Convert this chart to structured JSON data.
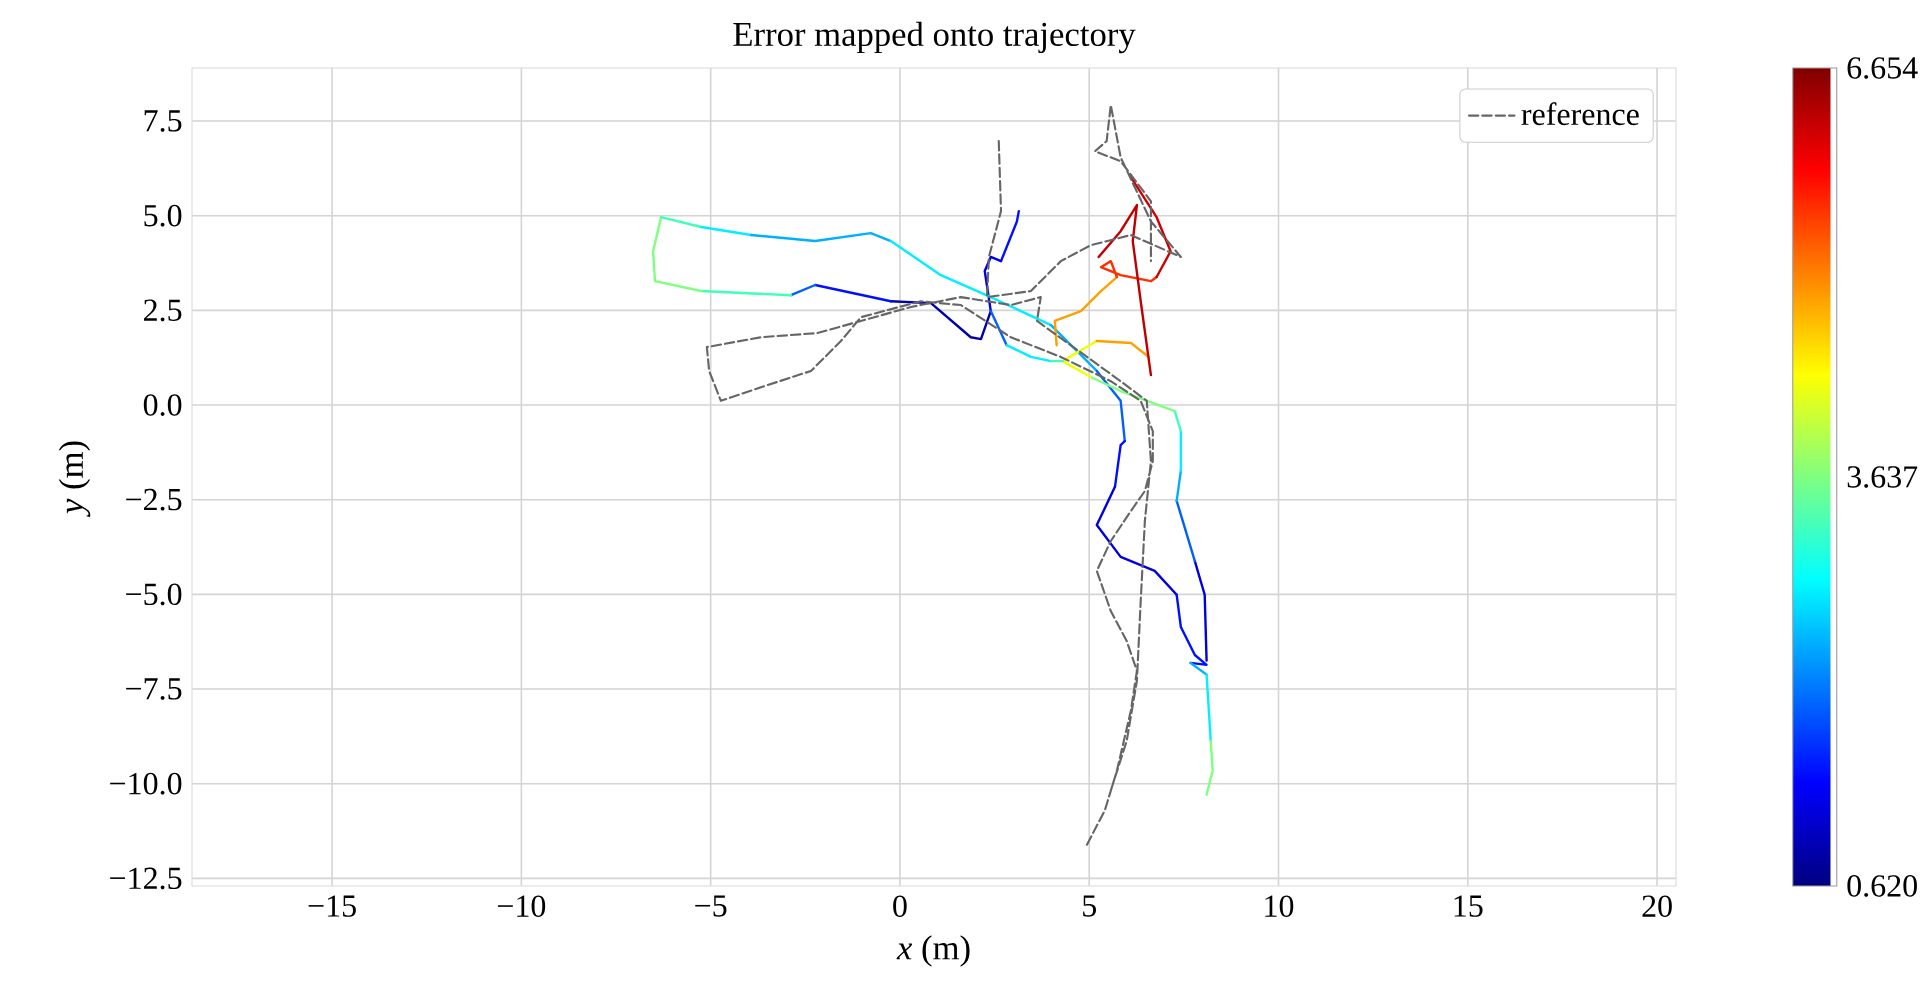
{
  "chart_data": {
    "type": "line",
    "title": "Error mapped onto trajectory",
    "xlabel": "*x* (m)",
    "ylabel": "*y* (m)",
    "xlim": [
      -18.7,
      20.5
    ],
    "ylim": [
      -12.7,
      8.9
    ],
    "xticks": [
      {
        "value": -15,
        "label": "−15"
      },
      {
        "value": -10,
        "label": "−10"
      },
      {
        "value": -5,
        "label": "−5"
      },
      0,
      5,
      10,
      15,
      20
    ],
    "yticks": [
      {
        "value": -12.5,
        "label": "−12.5"
      },
      {
        "value": -10,
        "label": "−10.0"
      },
      {
        "value": -7.5,
        "label": "−7.5"
      },
      {
        "value": -5,
        "label": "−5.0"
      },
      {
        "value": -2.5,
        "label": "−2.5"
      },
      {
        "value": 0,
        "label": "0.0"
      },
      2.5,
      {
        "value": 5,
        "label": "5.0"
      },
      7.5
    ],
    "clim": [
      0.62,
      6.654
    ],
    "cticks": [
      {
        "value": 0.62,
        "label": "0.620"
      },
      3.637,
      6.654
    ],
    "grid": true,
    "legend": "top right",
    "series": [
      {
        "color": "#0010ff",
        "x": [
          3.14,
          3.09,
          2.67
        ],
        "values": [
          5.12,
          4.85,
          3.8
        ]
      },
      {
        "color": "#0000e0",
        "x": [
          2.67,
          2.4,
          2.24,
          2.4
        ],
        "values": [
          3.8,
          3.91,
          3.54,
          2.48
        ]
      },
      {
        "color": "#0000b0",
        "x": [
          2.4,
          2.14,
          1.87,
          0.82,
          -0.24
        ],
        "values": [
          2.48,
          1.74,
          1.79,
          2.69,
          2.74
        ]
      },
      {
        "color": "#0010ff",
        "x": [
          -0.24,
          -2.24
        ],
        "values": [
          2.74,
          3.17
        ]
      },
      {
        "color": "#0060ff",
        "x": [
          -2.24,
          -2.88
        ],
        "values": [
          3.17,
          2.9
        ]
      },
      {
        "color": "#40ffb8",
        "x": [
          -2.88,
          -5.25
        ],
        "values": [
          2.9,
          3.01
        ]
      },
      {
        "color": "#80ff80",
        "x": [
          -5.25,
          -6.47,
          -6.52,
          -6.31
        ],
        "values": [
          3.01,
          3.27,
          4.06,
          4.96
        ]
      },
      {
        "color": "#40ffb8",
        "x": [
          -6.31,
          -5.25
        ],
        "values": [
          4.96,
          4.7
        ]
      },
      {
        "color": "#00f0ff",
        "x": [
          -5.25,
          -3.93
        ],
        "values": [
          4.7,
          4.49
        ]
      },
      {
        "color": "#00b0ff",
        "x": [
          -3.93,
          -2.24,
          -0.77,
          -0.24
        ],
        "values": [
          4.49,
          4.33,
          4.54,
          4.33
        ]
      },
      {
        "color": "#00f0ff",
        "x": [
          -0.24,
          1.08,
          2.4,
          3.99
        ],
        "values": [
          4.33,
          3.43,
          2.85,
          2.11
        ]
      },
      {
        "color": "#00b0ff",
        "x": [
          3.99,
          5.2
        ],
        "values": [
          2.11,
          0.9
        ]
      },
      {
        "color": "#0060ff",
        "x": [
          5.2,
          5.83,
          5.94
        ],
        "values": [
          0.9,
          0.11,
          -0.95
        ]
      },
      {
        "color": "#0010ff",
        "x": [
          5.94,
          5.83,
          5.68
        ],
        "values": [
          -0.95,
          -1.06,
          -2.16
        ]
      },
      {
        "color": "#0000e0",
        "x": [
          5.68,
          5.2,
          5.83,
          6.73,
          7.31
        ],
        "values": [
          -2.16,
          -3.17,
          -4.01,
          -4.38,
          -5.01
        ]
      },
      {
        "color": "#0010ff",
        "x": [
          7.31,
          7.42,
          7.79,
          8.1,
          7.68
        ],
        "values": [
          -5.01,
          -5.86,
          -6.6,
          -6.86,
          -6.81
        ]
      },
      {
        "color": "#00b0ff",
        "x": [
          7.68,
          8.1
        ],
        "values": [
          -6.81,
          -7.12
        ]
      },
      {
        "color": "#00f0ff",
        "x": [
          8.1,
          8.21
        ],
        "values": [
          -7.12,
          -8.87
        ]
      },
      {
        "color": "#80ff80",
        "x": [
          8.21,
          8.26,
          8.1
        ],
        "values": [
          -8.87,
          -9.66,
          -10.29
        ]
      },
      {
        "color": "#0000e0",
        "x": [
          8.1,
          8.05,
          7.79
        ],
        "values": [
          -6.75,
          -5.01,
          -4.12
        ]
      },
      {
        "color": "#0060ff",
        "x": [
          7.79,
          7.31
        ],
        "values": [
          -4.12,
          -2.53
        ]
      },
      {
        "color": "#00b0ff",
        "x": [
          7.31,
          7.42
        ],
        "values": [
          -2.53,
          -1.74
        ]
      },
      {
        "color": "#00f0ff",
        "x": [
          7.42,
          7.42
        ],
        "values": [
          -1.74,
          -0.69
        ]
      },
      {
        "color": "#40ffb8",
        "x": [
          7.42,
          7.26
        ],
        "values": [
          -0.69,
          -0.16
        ]
      },
      {
        "color": "#80ff80",
        "x": [
          7.26,
          5.83,
          5.04
        ],
        "values": [
          -0.16,
          0.37,
          0.74
        ]
      },
      {
        "color": "#f0ff00",
        "x": [
          5.04,
          4.3,
          5.2
        ],
        "values": [
          0.74,
          1.16,
          1.69
        ]
      },
      {
        "color": "#ffa000",
        "x": [
          5.2,
          6.1,
          6.57
        ],
        "values": [
          1.69,
          1.64,
          1.27
        ]
      },
      {
        "color": "#0060ff",
        "x": [
          2.4,
          2.82
        ],
        "values": [
          2.48,
          1.58
        ]
      },
      {
        "color": "#00f0ff",
        "x": [
          2.82,
          3.46,
          3.99
        ],
        "values": [
          1.58,
          1.27,
          1.16
        ]
      },
      {
        "color": "#40ffb8",
        "x": [
          3.99,
          4.3
        ],
        "values": [
          1.16,
          1.16
        ]
      },
      {
        "color": "#ffa000",
        "x": [
          4.14,
          4.09,
          4.78,
          5.31,
          5.73
        ],
        "values": [
          1.58,
          2.22,
          2.48,
          3.01,
          3.38
        ]
      },
      {
        "color": "#ff3000",
        "x": [
          5.73,
          5.57,
          5.31,
          5.83,
          6.63,
          6.78
        ],
        "values": [
          3.38,
          3.8,
          3.64,
          3.43,
          3.27,
          3.38
        ]
      },
      {
        "color": "#d00000",
        "x": [
          6.78,
          7.15,
          6.78,
          6.1
        ],
        "values": [
          3.38,
          4.06,
          4.96,
          6.02
        ]
      },
      {
        "color": "#c00000",
        "x": [
          5.25,
          5.83,
          6.26,
          6.15,
          6.36,
          6.63
        ],
        "values": [
          3.91,
          4.59,
          5.28,
          4.33,
          2.74,
          0.79
        ]
      },
      {
        "name": "reference",
        "color": "#666666",
        "line_style": "dashed",
        "x": [
          4.94,
          5.41,
          5.73,
          6.1,
          6.26,
          5.99,
          5.57,
          5.2,
          5.57,
          6.1,
          6.47,
          6.68,
          6.68,
          6.36,
          5.57,
          4.25,
          2.93,
          1.61,
          0.55,
          -1.03,
          -1.56,
          -2.35,
          -3.67,
          -4.73,
          -5.04,
          -5.1,
          -3.67,
          -2.19,
          -1.03,
          0.29,
          1.61,
          2.93,
          3.72,
          3.62,
          5.83,
          6.52,
          6.63,
          6.47,
          6.36,
          6.26,
          5.99,
          5.57,
          null,
          2.61,
          2.67,
          2.35,
          2.3,
          3.46,
          4.25,
          5.04,
          6.1,
          7.42,
          6.63,
          5.83,
          5.57,
          5.46,
          5.15,
          5.83,
          6.63,
          6.63
        ],
        "values": [
          -11.61,
          -10.71,
          -9.66,
          -8.07,
          -7.02,
          -6.23,
          -5.44,
          -4.38,
          -3.59,
          -2.8,
          -2.27,
          -1.48,
          -0.69,
          0.11,
          0.63,
          1.27,
          1.79,
          2.64,
          2.74,
          2.32,
          1.69,
          0.9,
          0.47,
          0.11,
          0.9,
          1.53,
          1.79,
          1.9,
          2.22,
          2.59,
          2.85,
          2.64,
          2.85,
          2.22,
          0.63,
          0.11,
          -1.48,
          -3.06,
          -5.17,
          -7.28,
          -8.87,
          -10.18,
          null,
          6.97,
          5.12,
          3.91,
          2.85,
          3.01,
          3.8,
          4.22,
          4.49,
          3.91,
          4.85,
          6.54,
          7.92,
          6.97,
          6.7,
          6.44,
          5.38,
          3.8
        ]
      }
    ]
  }
}
